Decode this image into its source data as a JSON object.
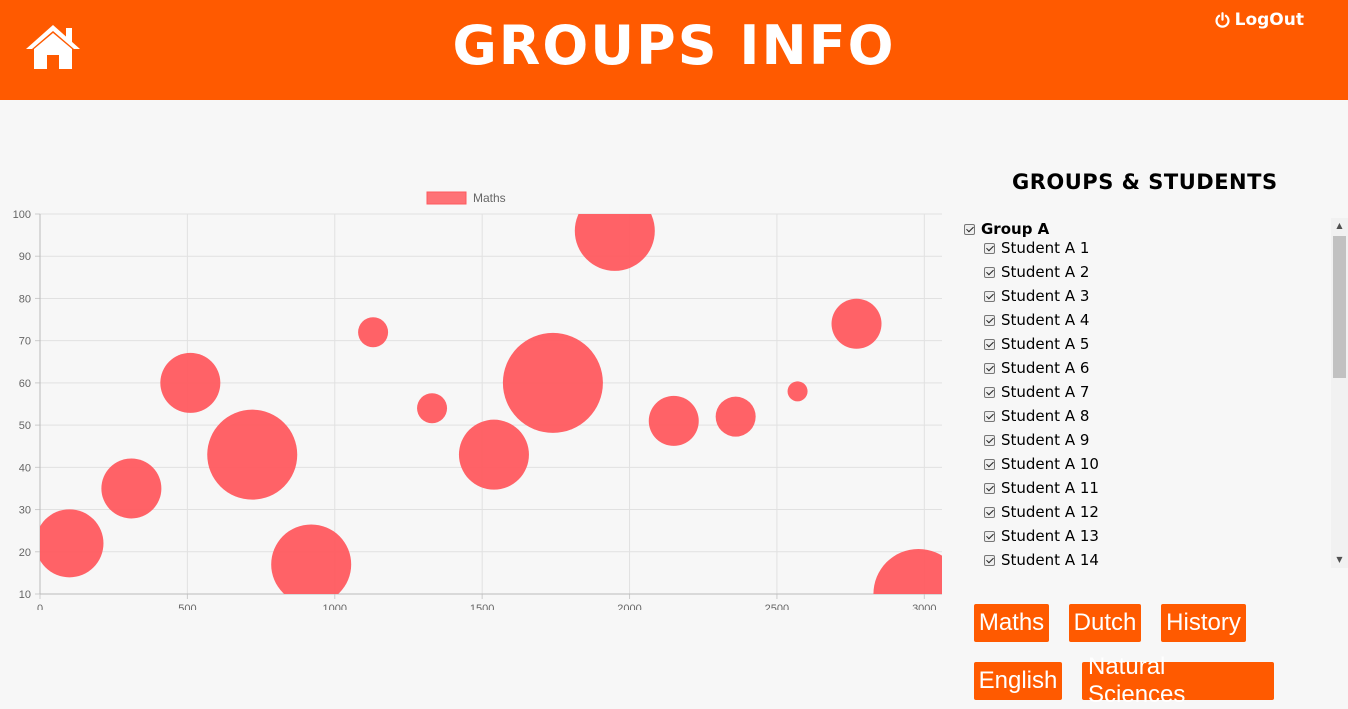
{
  "header": {
    "title": "GROUPS INFO",
    "logout_label": "LogOut",
    "home_icon": "home-icon",
    "logout_icon": "power-icon",
    "background_color": "#ff5a00"
  },
  "chart_data": {
    "type": "bubble",
    "series": [
      {
        "name": "Maths",
        "color": "#ff5a5f",
        "points": [
          {
            "x": 100,
            "y": 22,
            "r": 34
          },
          {
            "x": 310,
            "y": 35,
            "r": 30
          },
          {
            "x": 510,
            "y": 60,
            "r": 30
          },
          {
            "x": 720,
            "y": 43,
            "r": 45
          },
          {
            "x": 920,
            "y": 17,
            "r": 40
          },
          {
            "x": 1130,
            "y": 72,
            "r": 15
          },
          {
            "x": 1330,
            "y": 54,
            "r": 15
          },
          {
            "x": 1540,
            "y": 43,
            "r": 35
          },
          {
            "x": 1740,
            "y": 60,
            "r": 50
          },
          {
            "x": 1950,
            "y": 96,
            "r": 40
          },
          {
            "x": 2150,
            "y": 51,
            "r": 25
          },
          {
            "x": 2360,
            "y": 52,
            "r": 20
          },
          {
            "x": 2570,
            "y": 58,
            "r": 10
          },
          {
            "x": 2770,
            "y": 74,
            "r": 25
          },
          {
            "x": 2980,
            "y": 10,
            "r": 45
          }
        ]
      }
    ],
    "x_ticks": [
      "0",
      "500",
      "1000",
      "1500",
      "2000",
      "2500",
      "3000"
    ],
    "y_ticks": [
      "10",
      "20",
      "30",
      "40",
      "50",
      "60",
      "70",
      "80",
      "90",
      "100"
    ],
    "xlim": [
      0,
      3060
    ],
    "ylim": [
      10,
      100
    ],
    "grid": true,
    "legend": "top-center"
  },
  "panel": {
    "title": "GROUPS & STUDENTS",
    "group": {
      "label": "Group A",
      "checked": true
    },
    "students": [
      "Student A 1",
      "Student A 2",
      "Student A 3",
      "Student A 4",
      "Student A 5",
      "Student A 6",
      "Student A 7",
      "Student A 8",
      "Student A 9",
      "Student A 10",
      "Student A 11",
      "Student A 12",
      "Student A 13",
      "Student A 14"
    ]
  },
  "subjects": [
    "Maths",
    "Dutch",
    "History",
    "English",
    "Natural Sciences"
  ]
}
